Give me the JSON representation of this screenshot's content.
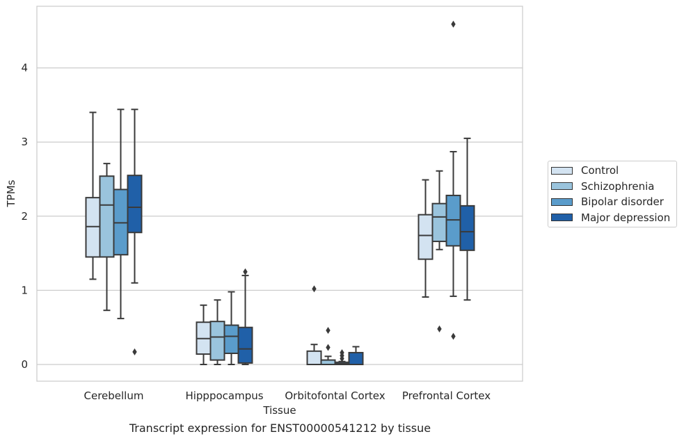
{
  "caption": "Transcript expression for ENST00000541212 by tissue",
  "chart_data": {
    "type": "boxplot",
    "xlabel": "Tissue",
    "ylabel": "TPMs",
    "ylim": [
      -0.22,
      4.82
    ],
    "yticks": [
      0,
      1,
      2,
      3,
      4
    ],
    "grid": "horizontal",
    "legend_position": "right",
    "categories": [
      "Cerebellum",
      "Hipppocampus",
      "Orbitofontal Cortex",
      "Prefrontal Cortex"
    ],
    "series": [
      {
        "name": "Control",
        "color": "#d3e3f1",
        "boxes": [
          {
            "whisker_low": 1.15,
            "q1": 1.45,
            "median": 1.86,
            "q3": 2.25,
            "whisker_high": 3.4,
            "outliers": []
          },
          {
            "whisker_low": 0.0,
            "q1": 0.14,
            "median": 0.35,
            "q3": 0.57,
            "whisker_high": 0.8,
            "outliers": []
          },
          {
            "whisker_low": 0.0,
            "q1": 0.0,
            "median": 0.0,
            "q3": 0.18,
            "whisker_high": 0.27,
            "outliers": [
              1.02
            ]
          },
          {
            "whisker_low": 0.91,
            "q1": 1.42,
            "median": 1.74,
            "q3": 2.02,
            "whisker_high": 2.49,
            "outliers": []
          }
        ]
      },
      {
        "name": "Schizophrenia",
        "color": "#9ac4dd",
        "boxes": [
          {
            "whisker_low": 0.73,
            "q1": 1.45,
            "median": 2.15,
            "q3": 2.54,
            "whisker_high": 2.71,
            "outliers": []
          },
          {
            "whisker_low": 0.0,
            "q1": 0.06,
            "median": 0.37,
            "q3": 0.58,
            "whisker_high": 0.87,
            "outliers": []
          },
          {
            "whisker_low": 0.0,
            "q1": 0.0,
            "median": 0.0,
            "q3": 0.06,
            "whisker_high": 0.11,
            "outliers": [
              0.23,
              0.46
            ]
          },
          {
            "whisker_low": 1.55,
            "q1": 1.66,
            "median": 1.99,
            "q3": 2.17,
            "whisker_high": 2.61,
            "outliers": [
              0.48
            ]
          }
        ]
      },
      {
        "name": "Bipolar disorder",
        "color": "#5a9ccb",
        "boxes": [
          {
            "whisker_low": 0.62,
            "q1": 1.48,
            "median": 1.91,
            "q3": 2.36,
            "whisker_high": 3.44,
            "outliers": []
          },
          {
            "whisker_low": 0.0,
            "q1": 0.15,
            "median": 0.38,
            "q3": 0.53,
            "whisker_high": 0.98,
            "outliers": []
          },
          {
            "whisker_low": 0.0,
            "q1": 0.0,
            "median": 0.01,
            "q3": 0.03,
            "whisker_high": 0.04,
            "outliers": [
              0.08,
              0.12,
              0.16
            ]
          },
          {
            "whisker_low": 0.92,
            "q1": 1.6,
            "median": 1.95,
            "q3": 2.28,
            "whisker_high": 2.87,
            "outliers": [
              0.38,
              4.59
            ]
          }
        ]
      },
      {
        "name": "Major depression",
        "color": "#2060a8",
        "boxes": [
          {
            "whisker_low": 1.1,
            "q1": 1.78,
            "median": 2.12,
            "q3": 2.55,
            "whisker_high": 3.44,
            "outliers": [
              0.17
            ]
          },
          {
            "whisker_low": 0.0,
            "q1": 0.02,
            "median": 0.21,
            "q3": 0.5,
            "whisker_high": 1.2,
            "outliers": [
              1.25
            ]
          },
          {
            "whisker_low": 0.0,
            "q1": 0.0,
            "median": 0.0,
            "q3": 0.16,
            "whisker_high": 0.24,
            "outliers": []
          },
          {
            "whisker_low": 0.87,
            "q1": 1.54,
            "median": 1.79,
            "q3": 2.14,
            "whisker_high": 3.05,
            "outliers": []
          }
        ]
      }
    ]
  }
}
